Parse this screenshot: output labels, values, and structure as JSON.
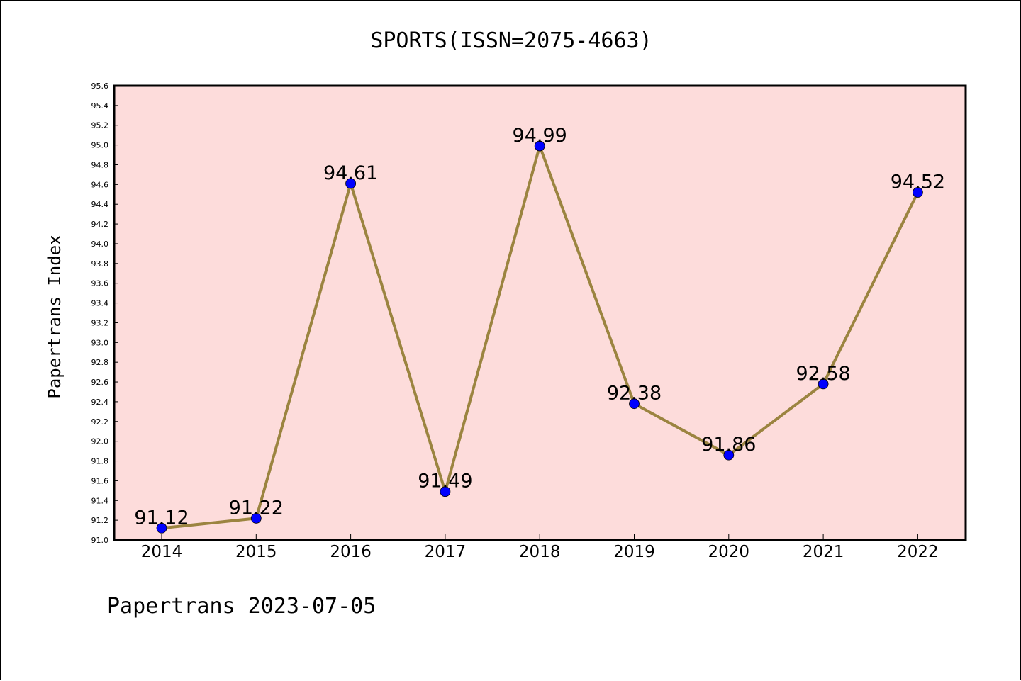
{
  "chart_data": {
    "type": "line",
    "title": "SPORTS(ISSN=2075-4663)",
    "xlabel": "",
    "ylabel": "Papertrans Index",
    "footer": "Papertrans 2023-07-05",
    "categories": [
      "2014",
      "2015",
      "2016",
      "2017",
      "2018",
      "2019",
      "2020",
      "2021",
      "2022"
    ],
    "values": [
      91.12,
      91.22,
      94.61,
      91.49,
      94.99,
      92.38,
      91.86,
      92.58,
      94.52
    ],
    "data_labels": [
      "91.12",
      "91.22",
      "94.61",
      "91.49",
      "94.99",
      "92.38",
      "91.86",
      "92.58",
      "94.52"
    ],
    "ylim": [
      91.0,
      95.6
    ],
    "yticks": [
      "91.0",
      "91.2",
      "91.4",
      "91.6",
      "91.8",
      "92.0",
      "92.2",
      "92.4",
      "92.6",
      "92.8",
      "93.0",
      "93.2",
      "93.4",
      "93.6",
      "93.8",
      "94.0",
      "94.2",
      "94.4",
      "94.6",
      "94.8",
      "95.0",
      "95.2",
      "95.4",
      "95.6"
    ],
    "grid": false,
    "legend": "none",
    "colors": {
      "plot_background": "#fddcdb",
      "line": "#9b8440",
      "marker": "#0000ff"
    }
  }
}
